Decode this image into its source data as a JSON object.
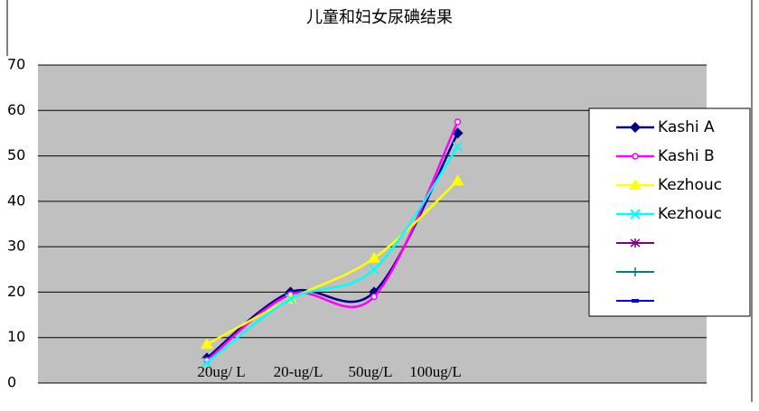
{
  "chart_data": {
    "type": "line",
    "title": "儿童和妇女尿碘结果",
    "categories": [
      "20ug/ L",
      "20-ug/L",
      "50ug/L",
      "100ug/L"
    ],
    "series": [
      {
        "name": "Kashi A",
        "color": "#000080",
        "marker": "diamond",
        "values": [
          5.5,
          20,
          20,
          55
        ]
      },
      {
        "name": "Kashi B",
        "color": "#ff00ff",
        "marker": "circle",
        "values": [
          5,
          19.5,
          19,
          57.5
        ]
      },
      {
        "name": "Kezhouc",
        "color": "#ffff00",
        "marker": "triangle",
        "values": [
          8.5,
          18.5,
          27.5,
          44.5
        ]
      },
      {
        "name": "Kezhouc",
        "color": "#00ffff",
        "marker": "x",
        "values": [
          4.5,
          18.5,
          25,
          52
        ]
      }
    ],
    "ylim": [
      0,
      70
    ],
    "yticks": [
      0,
      10,
      20,
      30,
      40,
      50,
      60,
      70
    ],
    "grid": true,
    "smooth": true,
    "legend": "right"
  }
}
